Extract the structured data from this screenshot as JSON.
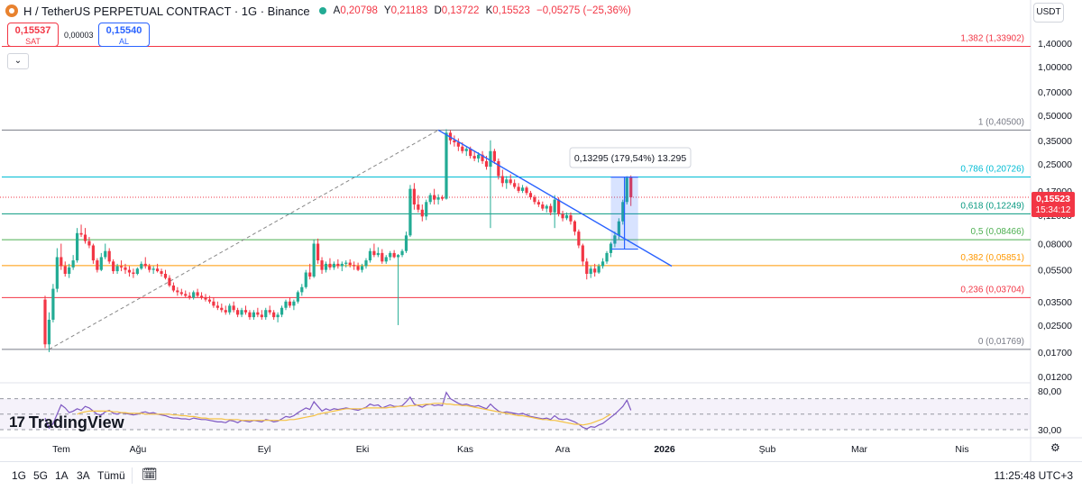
{
  "header": {
    "title": "H / TetherUS PERPETUAL CONTRACT · 1G · Binance",
    "ohlc": [
      {
        "label": "A",
        "value": "0,20798"
      },
      {
        "label": "Y",
        "value": "0,21183"
      },
      {
        "label": "D",
        "value": "0,13722"
      },
      {
        "label": "K",
        "value": "0,15523"
      }
    ],
    "change": "−0,05275 (−25,36%)",
    "currency": "USDT"
  },
  "trade": {
    "sell_price": "0,15537",
    "sell_label": "SAT",
    "spread": "0,00003",
    "buy_price": "0,15540",
    "buy_label": "AL"
  },
  "brand": {
    "logo_mark": "17",
    "name": "TradingView"
  },
  "bottom_bar": {
    "ranges": [
      "1G",
      "5G",
      "1A",
      "3A",
      "Tümü"
    ],
    "clock": "11:25:48 UTC+3"
  },
  "colors": {
    "up": "#22ab94",
    "down": "#f23645",
    "accent": "#2962ff",
    "rsi": "#7e57c2",
    "rsi_ma": "#f5c244"
  },
  "chart_data": {
    "type": "candlestick",
    "y_scale": "log",
    "y_axis_ticks": [
      "1,40000",
      "1,00000",
      "0,70000",
      "0,50000",
      "0,35000",
      "0,25000",
      "0,17000",
      "0,12000",
      "0,08000",
      "0,05500",
      "0,03500",
      "0,02500",
      "0,01700",
      "0,01200"
    ],
    "y_tick_values": [
      1.4,
      1.0,
      0.7,
      0.5,
      0.35,
      0.25,
      0.17,
      0.12,
      0.08,
      0.055,
      0.035,
      0.025,
      0.017,
      0.012
    ],
    "x_axis_ticks": [
      "Tem",
      "Ağu",
      "Eyl",
      "Eki",
      "Kas",
      "Ara",
      "2026",
      "Şub",
      "Mar",
      "Nis"
    ],
    "last_price": "0,15523",
    "last_price_value": 0.15523,
    "countdown": "15:34:12",
    "candles": [
      [
        0.036,
        0.038,
        0.018,
        0.019
      ],
      [
        0.019,
        0.03,
        0.017,
        0.027
      ],
      [
        0.027,
        0.045,
        0.026,
        0.042
      ],
      [
        0.042,
        0.075,
        0.04,
        0.066
      ],
      [
        0.066,
        0.08,
        0.055,
        0.058
      ],
      [
        0.058,
        0.062,
        0.05,
        0.052
      ],
      [
        0.052,
        0.06,
        0.049,
        0.057
      ],
      [
        0.057,
        0.068,
        0.055,
        0.063
      ],
      [
        0.063,
        0.1,
        0.061,
        0.093
      ],
      [
        0.093,
        0.105,
        0.088,
        0.091
      ],
      [
        0.091,
        0.1,
        0.08,
        0.083
      ],
      [
        0.083,
        0.088,
        0.075,
        0.078
      ],
      [
        0.078,
        0.08,
        0.06,
        0.063
      ],
      [
        0.063,
        0.065,
        0.053,
        0.055
      ],
      [
        0.055,
        0.07,
        0.054,
        0.066
      ],
      [
        0.066,
        0.08,
        0.064,
        0.072
      ],
      [
        0.072,
        0.075,
        0.06,
        0.062
      ],
      [
        0.062,
        0.064,
        0.052,
        0.054
      ],
      [
        0.054,
        0.06,
        0.052,
        0.058
      ],
      [
        0.058,
        0.063,
        0.054,
        0.057
      ],
      [
        0.057,
        0.06,
        0.052,
        0.055
      ],
      [
        0.055,
        0.058,
        0.05,
        0.053
      ],
      [
        0.053,
        0.056,
        0.049,
        0.052
      ],
      [
        0.052,
        0.057,
        0.051,
        0.056
      ],
      [
        0.056,
        0.062,
        0.055,
        0.06
      ],
      [
        0.06,
        0.066,
        0.056,
        0.058
      ],
      [
        0.058,
        0.06,
        0.053,
        0.055
      ],
      [
        0.055,
        0.058,
        0.052,
        0.056
      ],
      [
        0.056,
        0.06,
        0.053,
        0.054
      ],
      [
        0.054,
        0.056,
        0.05,
        0.052
      ],
      [
        0.052,
        0.055,
        0.048,
        0.049
      ],
      [
        0.049,
        0.051,
        0.043,
        0.044
      ],
      [
        0.044,
        0.046,
        0.04,
        0.041
      ],
      [
        0.041,
        0.043,
        0.038,
        0.04
      ],
      [
        0.04,
        0.042,
        0.038,
        0.039
      ],
      [
        0.039,
        0.041,
        0.037,
        0.038
      ],
      [
        0.038,
        0.04,
        0.036,
        0.037
      ],
      [
        0.037,
        0.041,
        0.036,
        0.04
      ],
      [
        0.04,
        0.042,
        0.037,
        0.038
      ],
      [
        0.038,
        0.04,
        0.036,
        0.037
      ],
      [
        0.037,
        0.039,
        0.035,
        0.036
      ],
      [
        0.036,
        0.038,
        0.034,
        0.035
      ],
      [
        0.035,
        0.037,
        0.032,
        0.033
      ],
      [
        0.033,
        0.035,
        0.031,
        0.032
      ],
      [
        0.032,
        0.034,
        0.03,
        0.031
      ],
      [
        0.031,
        0.033,
        0.029,
        0.03
      ],
      [
        0.03,
        0.034,
        0.029,
        0.033
      ],
      [
        0.033,
        0.035,
        0.03,
        0.031
      ],
      [
        0.031,
        0.032,
        0.028,
        0.029
      ],
      [
        0.029,
        0.032,
        0.028,
        0.031
      ],
      [
        0.031,
        0.033,
        0.029,
        0.03
      ],
      [
        0.03,
        0.031,
        0.027,
        0.028
      ],
      [
        0.028,
        0.031,
        0.027,
        0.03
      ],
      [
        0.03,
        0.032,
        0.028,
        0.029
      ],
      [
        0.029,
        0.031,
        0.027,
        0.028
      ],
      [
        0.028,
        0.032,
        0.027,
        0.031
      ],
      [
        0.031,
        0.033,
        0.029,
        0.03
      ],
      [
        0.03,
        0.031,
        0.027,
        0.028
      ],
      [
        0.028,
        0.03,
        0.026,
        0.029
      ],
      [
        0.029,
        0.033,
        0.028,
        0.032
      ],
      [
        0.032,
        0.036,
        0.031,
        0.035
      ],
      [
        0.035,
        0.037,
        0.032,
        0.033
      ],
      [
        0.033,
        0.036,
        0.031,
        0.035
      ],
      [
        0.035,
        0.041,
        0.034,
        0.04
      ],
      [
        0.04,
        0.045,
        0.038,
        0.043
      ],
      [
        0.043,
        0.055,
        0.042,
        0.053
      ],
      [
        0.053,
        0.06,
        0.048,
        0.05
      ],
      [
        0.05,
        0.085,
        0.049,
        0.08
      ],
      [
        0.08,
        0.086,
        0.06,
        0.063
      ],
      [
        0.063,
        0.066,
        0.052,
        0.055
      ],
      [
        0.055,
        0.062,
        0.053,
        0.06
      ],
      [
        0.06,
        0.065,
        0.055,
        0.057
      ],
      [
        0.057,
        0.062,
        0.055,
        0.06
      ],
      [
        0.06,
        0.064,
        0.056,
        0.058
      ],
      [
        0.058,
        0.062,
        0.054,
        0.06
      ],
      [
        0.06,
        0.063,
        0.057,
        0.061
      ],
      [
        0.061,
        0.064,
        0.057,
        0.059
      ],
      [
        0.059,
        0.062,
        0.055,
        0.058
      ],
      [
        0.058,
        0.061,
        0.054,
        0.055
      ],
      [
        0.055,
        0.06,
        0.053,
        0.058
      ],
      [
        0.058,
        0.065,
        0.056,
        0.063
      ],
      [
        0.063,
        0.075,
        0.061,
        0.072
      ],
      [
        0.072,
        0.08,
        0.066,
        0.068
      ],
      [
        0.068,
        0.076,
        0.066,
        0.07
      ],
      [
        0.07,
        0.074,
        0.06,
        0.062
      ],
      [
        0.062,
        0.068,
        0.06,
        0.066
      ],
      [
        0.066,
        0.072,
        0.063,
        0.07
      ],
      [
        0.07,
        0.073,
        0.065,
        0.066
      ],
      [
        0.066,
        0.069,
        0.025,
        0.068
      ],
      [
        0.068,
        0.074,
        0.066,
        0.072
      ],
      [
        0.072,
        0.095,
        0.07,
        0.09
      ],
      [
        0.09,
        0.185,
        0.088,
        0.175
      ],
      [
        0.175,
        0.19,
        0.13,
        0.14
      ],
      [
        0.14,
        0.16,
        0.125,
        0.13
      ],
      [
        0.13,
        0.14,
        0.11,
        0.118
      ],
      [
        0.118,
        0.15,
        0.112,
        0.145
      ],
      [
        0.145,
        0.165,
        0.14,
        0.16
      ],
      [
        0.16,
        0.175,
        0.14,
        0.15
      ],
      [
        0.15,
        0.162,
        0.14,
        0.155
      ],
      [
        0.155,
        0.16,
        0.148,
        0.152
      ],
      [
        0.152,
        0.41,
        0.15,
        0.39
      ],
      [
        0.39,
        0.405,
        0.33,
        0.35
      ],
      [
        0.35,
        0.375,
        0.32,
        0.34
      ],
      [
        0.34,
        0.36,
        0.3,
        0.32
      ],
      [
        0.32,
        0.34,
        0.29,
        0.3
      ],
      [
        0.3,
        0.32,
        0.28,
        0.31
      ],
      [
        0.31,
        0.32,
        0.27,
        0.28
      ],
      [
        0.28,
        0.3,
        0.26,
        0.27
      ],
      [
        0.27,
        0.295,
        0.255,
        0.285
      ],
      [
        0.285,
        0.3,
        0.25,
        0.26
      ],
      [
        0.26,
        0.28,
        0.23,
        0.24
      ],
      [
        0.24,
        0.35,
        0.1,
        0.3
      ],
      [
        0.3,
        0.31,
        0.25,
        0.26
      ],
      [
        0.26,
        0.27,
        0.2,
        0.21
      ],
      [
        0.21,
        0.23,
        0.18,
        0.19
      ],
      [
        0.19,
        0.21,
        0.175,
        0.2
      ],
      [
        0.2,
        0.215,
        0.185,
        0.19
      ],
      [
        0.19,
        0.2,
        0.175,
        0.18
      ],
      [
        0.18,
        0.19,
        0.165,
        0.17
      ],
      [
        0.17,
        0.185,
        0.165,
        0.178
      ],
      [
        0.178,
        0.182,
        0.16,
        0.165
      ],
      [
        0.165,
        0.17,
        0.15,
        0.155
      ],
      [
        0.155,
        0.16,
        0.14,
        0.145
      ],
      [
        0.145,
        0.15,
        0.135,
        0.14
      ],
      [
        0.14,
        0.146,
        0.128,
        0.132
      ],
      [
        0.132,
        0.14,
        0.125,
        0.137
      ],
      [
        0.137,
        0.142,
        0.12,
        0.125
      ],
      [
        0.125,
        0.16,
        0.1,
        0.15
      ],
      [
        0.15,
        0.155,
        0.118,
        0.122
      ],
      [
        0.122,
        0.128,
        0.11,
        0.115
      ],
      [
        0.115,
        0.125,
        0.112,
        0.12
      ],
      [
        0.12,
        0.125,
        0.105,
        0.11
      ],
      [
        0.11,
        0.112,
        0.09,
        0.095
      ],
      [
        0.095,
        0.098,
        0.075,
        0.078
      ],
      [
        0.078,
        0.08,
        0.058,
        0.062
      ],
      [
        0.062,
        0.065,
        0.048,
        0.052
      ],
      [
        0.052,
        0.058,
        0.049,
        0.056
      ],
      [
        0.056,
        0.06,
        0.05,
        0.053
      ],
      [
        0.053,
        0.06,
        0.052,
        0.058
      ],
      [
        0.058,
        0.065,
        0.056,
        0.062
      ],
      [
        0.062,
        0.072,
        0.06,
        0.07
      ],
      [
        0.07,
        0.082,
        0.066,
        0.08
      ],
      [
        0.08,
        0.095,
        0.076,
        0.09
      ],
      [
        0.09,
        0.115,
        0.085,
        0.11
      ],
      [
        0.11,
        0.15,
        0.105,
        0.145
      ],
      [
        0.145,
        0.21,
        0.14,
        0.205
      ],
      [
        0.208,
        0.212,
        0.137,
        0.155
      ]
    ],
    "rsi": {
      "ticks": [
        "80,00",
        "30,00"
      ],
      "tick_values": [
        80,
        30
      ],
      "bands": [
        70,
        50,
        30
      ],
      "values": [
        45,
        32,
        38,
        50,
        62,
        58,
        52,
        54,
        57,
        55,
        60,
        58,
        54,
        50,
        49,
        53,
        55,
        51,
        50,
        52,
        51,
        50,
        49,
        50,
        52,
        53,
        51,
        52,
        50,
        49,
        48,
        46,
        45,
        45,
        44,
        44,
        43,
        45,
        44,
        43,
        43,
        42,
        41,
        40,
        40,
        39,
        42,
        41,
        39,
        42,
        41,
        40,
        42,
        41,
        40,
        43,
        42,
        40,
        41,
        44,
        47,
        46,
        48,
        52,
        55,
        58,
        56,
        66,
        60,
        54,
        57,
        55,
        57,
        56,
        57,
        58,
        57,
        56,
        55,
        57,
        59,
        63,
        61,
        62,
        58,
        60,
        62,
        60,
        60,
        61,
        66,
        72,
        63,
        61,
        59,
        62,
        63,
        61,
        62,
        61,
        78,
        70,
        67,
        64,
        62,
        63,
        61,
        60,
        61,
        59,
        57,
        63,
        58,
        54,
        52,
        53,
        52,
        51,
        50,
        51,
        49,
        47,
        46,
        45,
        44,
        45,
        43,
        48,
        44,
        43,
        44,
        42,
        40,
        37,
        33,
        31,
        34,
        33,
        36,
        38,
        42,
        46,
        50,
        55,
        60,
        68,
        55
      ],
      "ma_start": 8,
      "ma": [
        50,
        52,
        53,
        54,
        54,
        54,
        54,
        54,
        54,
        53,
        53,
        52,
        52,
        51,
        51,
        51,
        51,
        50,
        50,
        50,
        50,
        50,
        50,
        50,
        49,
        49,
        48,
        48,
        47,
        47,
        46,
        45,
        45,
        44,
        44,
        44,
        44,
        43,
        43,
        43,
        43,
        42,
        42,
        42,
        42,
        42,
        42,
        42,
        42,
        42,
        42,
        42,
        42,
        43,
        43,
        44,
        45,
        46,
        47,
        48,
        50,
        51,
        52,
        53,
        54,
        55,
        56,
        57,
        57,
        57,
        57,
        57,
        58,
        58,
        58,
        58,
        58,
        58,
        59,
        59,
        60,
        60,
        60,
        61,
        61,
        62,
        62,
        63,
        63,
        64,
        64,
        64,
        63,
        63,
        62,
        62,
        61,
        61,
        60,
        59,
        58,
        57,
        56,
        55,
        54,
        53,
        52,
        51,
        50,
        49,
        48,
        48,
        47,
        46,
        45,
        44,
        43,
        43,
        42,
        42,
        41,
        40,
        39,
        38,
        37,
        37,
        36,
        37,
        38,
        40,
        42,
        44,
        47,
        50
      ]
    },
    "fib": [
      {
        "label": "1,382 (1,33902)",
        "value": 1.33902,
        "color": "#f23645"
      },
      {
        "label": "1 (0,40500)",
        "value": 0.405,
        "color": "#787b86"
      },
      {
        "label": "0,786 (0,20726)",
        "value": 0.20726,
        "color": "#00bcd4"
      },
      {
        "label": "0,618 (0,12249)",
        "value": 0.12249,
        "color": "#089981"
      },
      {
        "label": "0,5 (0,08466)",
        "value": 0.08466,
        "color": "#4caf50"
      },
      {
        "label": "0,382 (0,05851)",
        "value": 0.05851,
        "color": "#ff9800"
      },
      {
        "label": "0,236 (0,03704)",
        "value": 0.03704,
        "color": "#f23645"
      },
      {
        "label": "0 (0,01769)",
        "value": 0.01769,
        "color": "#787b86"
      }
    ],
    "measure_label": "0,13295 (179,54%) 13.295",
    "measure_from": 0.074,
    "measure_to": 0.207
  }
}
